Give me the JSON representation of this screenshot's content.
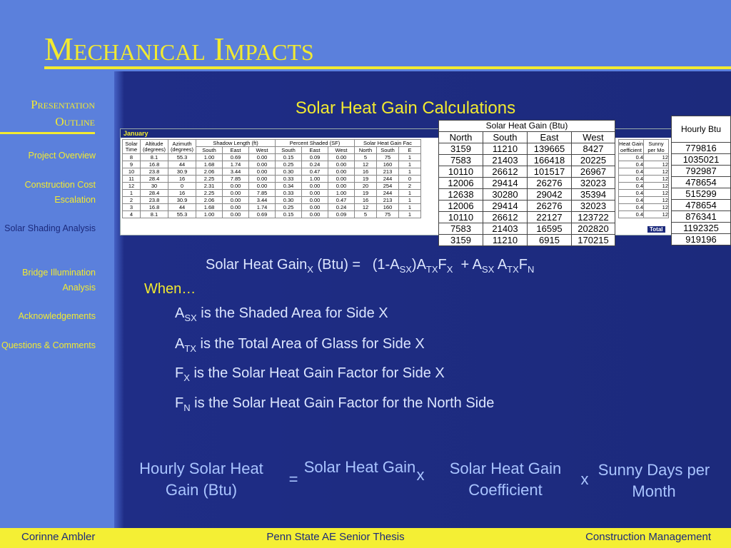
{
  "header": {
    "title": "Mechanical Impacts",
    "subtitle": "Solar Heat Gain Calculations"
  },
  "sidebar": {
    "title": "Presentation Outline",
    "current": 2,
    "items": [
      "Project Overview",
      "Construction Cost Escalation",
      "Solar Shading Analysis",
      "Bridge Illumination Analysis",
      "Acknowledgements",
      "Questions & Comments"
    ]
  },
  "bg_table": {
    "title": "January",
    "headers": [
      "Solar Time",
      "Altitude (degrees)",
      "Azimuth (degrees)"
    ],
    "group_headers": [
      "Shadow Length (ft)",
      "Percent Shaded (SF)",
      "Solar Heat Gain Fac"
    ],
    "sub_headers": [
      "South",
      "East",
      "West",
      "South",
      "East",
      "West",
      "North",
      "South",
      "E"
    ],
    "rows": [
      [
        "8",
        "8.1",
        "55.3",
        "1.00",
        "0.69",
        "0.00",
        "0.15",
        "0.09",
        "0.00",
        "5",
        "75",
        "1"
      ],
      [
        "9",
        "16.8",
        "44",
        "1.68",
        "1.74",
        "0.00",
        "0.25",
        "0.24",
        "0.00",
        "12",
        "160",
        "1"
      ],
      [
        "10",
        "23.8",
        "30.9",
        "2.06",
        "3.44",
        "0.00",
        "0.30",
        "0.47",
        "0.00",
        "16",
        "213",
        "1"
      ],
      [
        "11",
        "28.4",
        "16",
        "2.25",
        "7.85",
        "0.00",
        "0.33",
        "1.00",
        "0.00",
        "19",
        "244",
        "0"
      ],
      [
        "12",
        "30",
        "0",
        "2.31",
        "0.00",
        "0.00",
        "0.34",
        "0.00",
        "0.00",
        "20",
        "254",
        "2"
      ],
      [
        "1",
        "28.4",
        "16",
        "2.25",
        "0.00",
        "7.85",
        "0.33",
        "0.00",
        "1.00",
        "19",
        "244",
        "1"
      ],
      [
        "2",
        "23.8",
        "30.9",
        "2.06",
        "0.00",
        "3.44",
        "0.30",
        "0.00",
        "0.47",
        "16",
        "213",
        "1"
      ],
      [
        "3",
        "16.8",
        "44",
        "1.68",
        "0.00",
        "1.74",
        "0.25",
        "0.00",
        "0.24",
        "12",
        "160",
        "1"
      ],
      [
        "4",
        "8.1",
        "55.3",
        "1.00",
        "0.00",
        "0.69",
        "0.15",
        "0.00",
        "0.09",
        "5",
        "75",
        "1"
      ]
    ],
    "right_headers": [
      "Heat Gain oefficient",
      "Sunny per Mo"
    ],
    "right_rows": [
      [
        "0.4",
        "12"
      ],
      [
        "0.4",
        "12"
      ],
      [
        "0.4",
        "12"
      ],
      [
        "0.4",
        "12"
      ],
      [
        "0.4",
        "12"
      ],
      [
        "0.4",
        "12"
      ],
      [
        "0.4",
        "12"
      ],
      [
        "0.4",
        "12"
      ],
      [
        "0.4",
        "12"
      ]
    ],
    "total": "Total"
  },
  "gain_table": {
    "title": "Solar Heat Gain (Btu)",
    "columns": [
      "North",
      "South",
      "East",
      "West"
    ],
    "rows": [
      [
        3159,
        11210,
        139665,
        8427
      ],
      [
        7583,
        21403,
        166418,
        20225
      ],
      [
        10110,
        26612,
        101517,
        26967
      ],
      [
        12006,
        29414,
        26276,
        32023
      ],
      [
        12638,
        30280,
        29042,
        35394
      ],
      [
        12006,
        29414,
        26276,
        32023
      ],
      [
        10110,
        26612,
        22127,
        123722
      ],
      [
        7583,
        21403,
        16595,
        202820
      ],
      [
        3159,
        11210,
        6915,
        170215
      ]
    ]
  },
  "hourly_table": {
    "title": "Hourly Btu",
    "values": [
      779816,
      1035021,
      792987,
      478654,
      515299,
      478654,
      876341,
      1192325,
      919196
    ]
  },
  "formula": [
    {
      "t": "Solar Heat Gain",
      "sub": "X"
    },
    {
      "t": " (Btu) =   (1-A",
      "sub": "SX"
    },
    {
      "t": ")A",
      "sub": "TX"
    },
    {
      "t": "F",
      "sub": "X"
    },
    {
      "t": "  + A",
      "sub": "SX"
    },
    {
      "t": " A",
      "sub": "TX"
    },
    {
      "t": "F",
      "sub": "N"
    }
  ],
  "when": "When…",
  "definitions": [
    {
      "sym": "A",
      "sub": "SX",
      "text": " is the Shaded Area for Side X"
    },
    {
      "sym": "A",
      "sub": "TX",
      "text": " is the Total Area of Glass for Side X"
    },
    {
      "sym": "F",
      "sub": "X",
      "text": " is the Solar Heat Gain Factor for Side X"
    },
    {
      "sym": "F",
      "sub": "N",
      "text": " is the Solar Heat Gain Factor for the North Side"
    }
  ],
  "equation": [
    "Hourly Solar Heat Gain (Btu)",
    "=",
    "Solar Heat Gain",
    "x",
    "Solar Heat Gain Coefficient",
    "x",
    "Sunny Days per Month"
  ],
  "footer": {
    "left": "Corinne Ambler",
    "center": "Penn State AE Senior Thesis",
    "right": "Construction Management"
  }
}
